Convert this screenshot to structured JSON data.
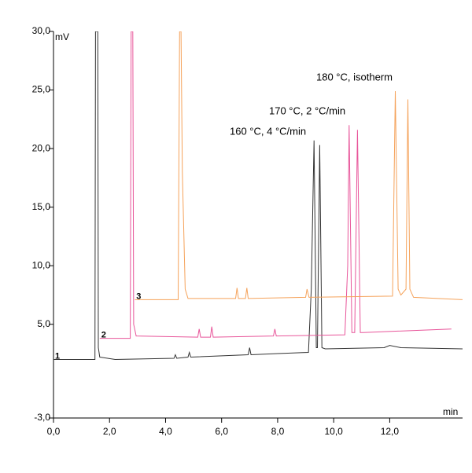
{
  "chart_data": {
    "type": "line",
    "ylabel": "mV",
    "xlabel": "min",
    "xlim": [
      0,
      14.6
    ],
    "ylim": [
      -3,
      30
    ],
    "xticks": [
      {
        "value": 0,
        "label": "0,0"
      },
      {
        "value": 2,
        "label": "2,0"
      },
      {
        "value": 4,
        "label": "4,0"
      },
      {
        "value": 6,
        "label": "6,0"
      },
      {
        "value": 8,
        "label": "8,0"
      },
      {
        "value": 10,
        "label": "10,0"
      },
      {
        "value": 12,
        "label": "12,0"
      }
    ],
    "yticks": [
      {
        "value": -3,
        "label": "-3,0"
      },
      {
        "value": 5,
        "label": "5,0"
      },
      {
        "value": 10,
        "label": "10,0"
      },
      {
        "value": 15,
        "label": "15,0"
      },
      {
        "value": 20,
        "label": "20,0"
      },
      {
        "value": 25,
        "label": "25,0"
      },
      {
        "value": 30,
        "label": "30,0"
      }
    ],
    "series": [
      {
        "name": "160 °C, 4 °C/min",
        "label": "1",
        "color": "#333333",
        "x": [
          0,
          1.48,
          1.5,
          1.58,
          1.6,
          1.65,
          2.2,
          4.3,
          4.35,
          4.4,
          4.8,
          4.85,
          4.9,
          6.95,
          7.0,
          7.05,
          8.0,
          9.1,
          9.2,
          9.3,
          9.38,
          9.42,
          9.5,
          9.58,
          9.7,
          11.8,
          12.0,
          12.4,
          14.6
        ],
        "values": [
          2.0,
          2.0,
          30,
          30,
          3.0,
          2.2,
          2.0,
          2.1,
          2.4,
          2.1,
          2.2,
          2.6,
          2.2,
          2.4,
          3.0,
          2.4,
          2.5,
          2.6,
          8.0,
          20.7,
          3.0,
          3.0,
          20.3,
          3.0,
          2.9,
          3.0,
          3.2,
          3.0,
          2.9
        ]
      },
      {
        "name": "170 °C, 2 °C/min",
        "label": "2",
        "color": "#e8559a",
        "x": [
          1.65,
          2.74,
          2.77,
          2.83,
          2.86,
          2.95,
          5.15,
          5.2,
          5.25,
          5.6,
          5.65,
          5.7,
          7.85,
          7.9,
          7.95,
          10.4,
          10.5,
          10.55,
          10.65,
          10.75,
          10.85,
          10.95,
          11.05,
          14.2
        ],
        "values": [
          3.8,
          3.8,
          30,
          30,
          5.0,
          4.0,
          3.9,
          4.6,
          3.9,
          3.9,
          4.8,
          3.9,
          4.0,
          4.6,
          4.0,
          4.1,
          10.0,
          22.0,
          4.3,
          4.3,
          21.6,
          4.3,
          4.3,
          4.6
        ]
      },
      {
        "name": "180 °C, isotherm",
        "label": "3",
        "color": "#f5a25a",
        "x": [
          2.9,
          4.45,
          4.5,
          4.55,
          4.6,
          4.7,
          4.8,
          6.5,
          6.55,
          6.6,
          6.85,
          6.9,
          6.95,
          9.0,
          9.05,
          9.12,
          12.1,
          12.2,
          12.3,
          12.4,
          12.58,
          12.65,
          12.72,
          12.85,
          14.6
        ],
        "values": [
          7.1,
          7.1,
          30,
          30,
          18.0,
          8.0,
          7.2,
          7.2,
          8.1,
          7.2,
          7.2,
          8.1,
          7.2,
          7.3,
          8.0,
          7.3,
          7.4,
          24.9,
          8.0,
          7.5,
          8.0,
          24.2,
          8.0,
          7.3,
          7.1
        ]
      }
    ]
  }
}
